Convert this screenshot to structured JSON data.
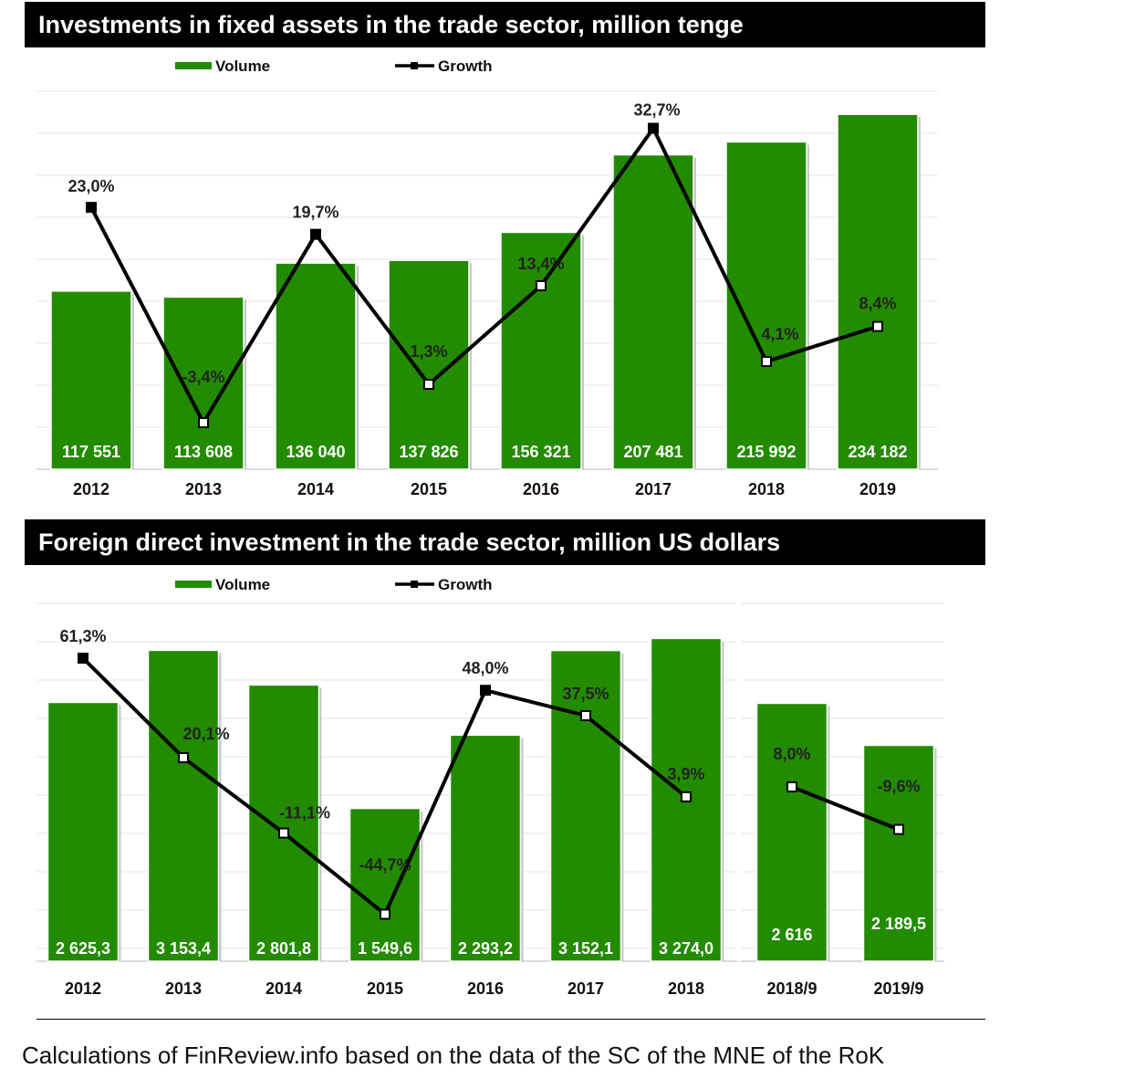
{
  "palette": {
    "bar": "#228B00",
    "bar_stroke": "#1a6a00",
    "line": "#000000",
    "grid": "#e6e6e6"
  },
  "legend": {
    "volume": "Volume",
    "growth": "Growth"
  },
  "chart_data": [
    {
      "type": "bar",
      "title": "Investments in fixed assets in the trade sector, million tenge",
      "categories": [
        "2012",
        "2013",
        "2014",
        "2015",
        "2016",
        "2017",
        "2018",
        "2019"
      ],
      "series": [
        {
          "name": "Volume",
          "type": "bar",
          "values": [
            117551,
            113608,
            136040,
            137826,
            156321,
            207481,
            215992,
            234182
          ],
          "labels": [
            "117 551",
            "113 608",
            "136 040",
            "137 826",
            "156 321",
            "207 481",
            "215 992",
            "234 182"
          ]
        },
        {
          "name": "Growth",
          "type": "line",
          "unit": "%",
          "values": [
            23.0,
            -3.4,
            19.7,
            1.3,
            13.4,
            32.7,
            4.1,
            8.4
          ],
          "labels": [
            "23,0%",
            "-3,4%",
            "19,7%",
            "1,3%",
            "13,4%",
            "32,7%",
            "4,1%",
            "8,4%"
          ]
        }
      ],
      "ylim_volume": [
        0,
        250000
      ],
      "ylim_growth": [
        -10,
        35
      ],
      "grid": true,
      "legend_position": "top"
    },
    {
      "type": "bar",
      "title": "Foreign direct investment in the trade sector, million US dollars",
      "categories": [
        "2012",
        "2013",
        "2014",
        "2015",
        "2016",
        "2017",
        "2018",
        "2018/9",
        "2019/9"
      ],
      "series": [
        {
          "name": "Volume",
          "type": "bar",
          "values": [
            2625.3,
            3153.4,
            2801.8,
            1549.6,
            2293.2,
            3152.1,
            3274.0,
            2616,
            2189.5
          ],
          "labels": [
            "2 625,3",
            "3 153,4",
            "2 801,8",
            "1 549,6",
            "2 293,2",
            "3 152,1",
            "3 274,0",
            "2 616",
            "2 189,5"
          ]
        },
        {
          "name": "Growth",
          "type": "line",
          "unit": "%",
          "values": [
            61.3,
            20.1,
            -11.1,
            -44.7,
            48.0,
            37.5,
            3.9,
            8.0,
            -9.6
          ],
          "labels": [
            "61,3%",
            "20,1%",
            "-11,1%",
            "-44,7%",
            "48,0%",
            "37,5%",
            "3,9%",
            "8,0%",
            "-9,6%"
          ]
        }
      ],
      "ylim_volume": [
        0,
        3500
      ],
      "ylim_growth": [
        -60,
        70
      ],
      "grid": true,
      "legend_position": "top"
    }
  ],
  "source": "Calculations of FinReview.info based on the data of the SC of the MNE of the RoK"
}
